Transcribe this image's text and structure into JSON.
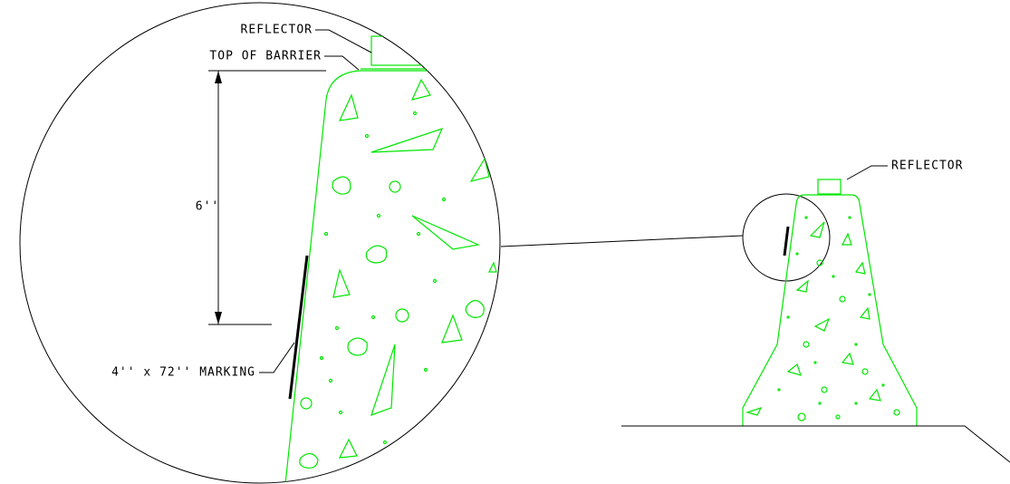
{
  "detail": {
    "reflector_label": "REFLECTOR",
    "top_label": "TOP OF BARRIER",
    "dimension": "6''",
    "marking_label": "4'' x 72'' MARKING"
  },
  "section": {
    "reflector_label": "REFLECTOR"
  }
}
